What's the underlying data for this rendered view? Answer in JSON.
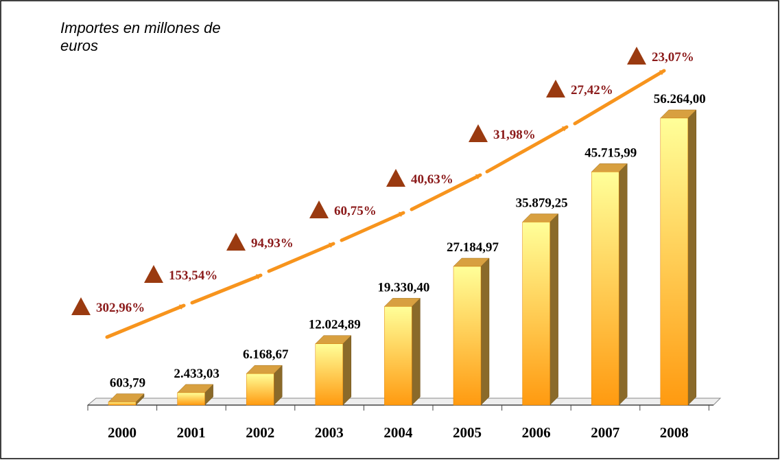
{
  "chart_data": {
    "type": "bar3d",
    "title": "Importes en millones de euros",
    "categories": [
      "2000",
      "2001",
      "2002",
      "2003",
      "2004",
      "2005",
      "2006",
      "2007",
      "2008"
    ],
    "values": [
      603.79,
      2433.03,
      6168.67,
      12024.89,
      19330.4,
      27184.97,
      35879.25,
      45715.99,
      56264.0
    ],
    "value_labels": [
      "603,79",
      "2.433,03",
      "6.168,67",
      "12.024,89",
      "19.330,40",
      "27.184,97",
      "35.879,25",
      "45.715,99",
      "56.264,00"
    ],
    "color": "#ffa020",
    "growth": {
      "values": [
        302.96,
        153.54,
        94.93,
        60.75,
        40.63,
        31.98,
        27.42,
        23.07
      ],
      "value_labels": [
        "302,96%",
        "153,54%",
        "94,93%",
        "60,75%",
        "40,63%",
        "31,98%",
        "27,42%",
        "23,07%"
      ],
      "color": "#9a3a10",
      "label_color": "#8b1a1a"
    }
  }
}
